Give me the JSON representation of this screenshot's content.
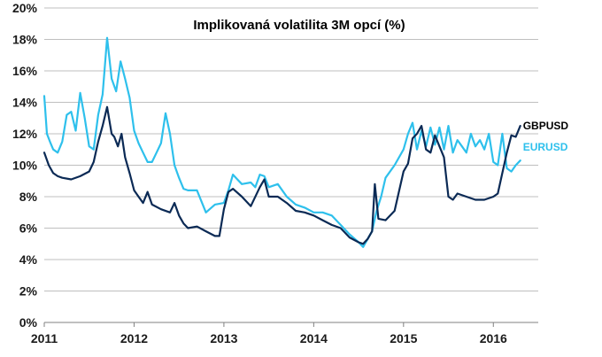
{
  "chart_data": {
    "type": "line",
    "title": "Implikovaná volatilita 3M opcí (%)",
    "xlabel": "",
    "ylabel": "",
    "ylim": [
      0,
      20
    ],
    "xlim": [
      2011.0,
      2016.5
    ],
    "y_ticks": [
      0,
      2,
      4,
      6,
      8,
      10,
      12,
      14,
      16,
      18,
      20
    ],
    "y_tick_labels": [
      "0%",
      "2%",
      "4%",
      "6%",
      "8%",
      "10%",
      "12%",
      "14%",
      "16%",
      "18%",
      "20%"
    ],
    "x_ticks": [
      2011,
      2012,
      2013,
      2014,
      2015,
      2016
    ],
    "x_tick_labels": [
      "2011",
      "2012",
      "2013",
      "2014",
      "2015",
      "2016"
    ],
    "grid": "horizontal",
    "series": [
      {
        "name": "GBPUSD",
        "color": "#0b2a55",
        "x": [
          2011.0,
          2011.05,
          2011.1,
          2011.15,
          2011.2,
          2011.3,
          2011.4,
          2011.5,
          2011.55,
          2011.6,
          2011.65,
          2011.7,
          2011.75,
          2011.78,
          2011.82,
          2011.86,
          2011.9,
          2011.95,
          2012.0,
          2012.05,
          2012.1,
          2012.15,
          2012.2,
          2012.3,
          2012.4,
          2012.45,
          2012.5,
          2012.55,
          2012.6,
          2012.7,
          2012.8,
          2012.9,
          2012.95,
          2013.0,
          2013.05,
          2013.1,
          2013.2,
          2013.3,
          2013.4,
          2013.45,
          2013.5,
          2013.6,
          2013.7,
          2013.8,
          2013.9,
          2014.0,
          2014.1,
          2014.2,
          2014.3,
          2014.4,
          2014.5,
          2014.55,
          2014.6,
          2014.65,
          2014.68,
          2014.72,
          2014.8,
          2014.9,
          2015.0,
          2015.05,
          2015.1,
          2015.15,
          2015.2,
          2015.25,
          2015.3,
          2015.35,
          2015.4,
          2015.45,
          2015.5,
          2015.55,
          2015.6,
          2015.7,
          2015.8,
          2015.9,
          2016.0,
          2016.05,
          2016.1,
          2016.15,
          2016.2,
          2016.25,
          2016.3
        ],
        "values": [
          10.8,
          10.0,
          9.5,
          9.3,
          9.2,
          9.1,
          9.3,
          9.6,
          10.2,
          11.5,
          12.5,
          13.7,
          12.0,
          11.8,
          11.2,
          12.0,
          10.5,
          9.5,
          8.4,
          8.0,
          7.6,
          8.3,
          7.5,
          7.2,
          7.0,
          7.6,
          6.8,
          6.3,
          6.0,
          6.1,
          5.8,
          5.5,
          5.5,
          7.2,
          8.3,
          8.5,
          8.0,
          7.4,
          8.6,
          9.1,
          8.0,
          8.0,
          7.6,
          7.1,
          7.0,
          6.8,
          6.5,
          6.2,
          6.0,
          5.4,
          5.1,
          5.0,
          5.3,
          5.8,
          8.8,
          6.6,
          6.5,
          7.1,
          9.6,
          10.1,
          11.7,
          12.0,
          12.5,
          11.0,
          10.8,
          11.9,
          11.2,
          10.5,
          8.0,
          7.8,
          8.2,
          8.0,
          7.8,
          7.8,
          8.0,
          8.2,
          9.5,
          10.8,
          11.9,
          11.8,
          12.5
        ]
      },
      {
        "name": "EURUSD",
        "color": "#2ec0ec",
        "x": [
          2011.0,
          2011.03,
          2011.07,
          2011.1,
          2011.15,
          2011.2,
          2011.25,
          2011.3,
          2011.35,
          2011.4,
          2011.45,
          2011.5,
          2011.55,
          2011.6,
          2011.65,
          2011.7,
          2011.75,
          2011.8,
          2011.85,
          2011.9,
          2011.95,
          2012.0,
          2012.05,
          2012.1,
          2012.15,
          2012.2,
          2012.25,
          2012.3,
          2012.35,
          2012.4,
          2012.45,
          2012.5,
          2012.55,
          2012.6,
          2012.7,
          2012.8,
          2012.9,
          2013.0,
          2013.05,
          2013.1,
          2013.15,
          2013.2,
          2013.3,
          2013.35,
          2013.4,
          2013.45,
          2013.5,
          2013.6,
          2013.7,
          2013.8,
          2013.9,
          2014.0,
          2014.1,
          2014.2,
          2014.3,
          2014.4,
          2014.5,
          2014.55,
          2014.6,
          2014.65,
          2014.7,
          2014.75,
          2014.8,
          2014.9,
          2015.0,
          2015.05,
          2015.1,
          2015.15,
          2015.2,
          2015.25,
          2015.3,
          2015.35,
          2015.4,
          2015.45,
          2015.5,
          2015.55,
          2015.6,
          2015.65,
          2015.7,
          2015.75,
          2015.8,
          2015.85,
          2015.9,
          2015.95,
          2016.0,
          2016.05,
          2016.1,
          2016.15,
          2016.2,
          2016.25,
          2016.3
        ],
        "values": [
          14.4,
          12.0,
          11.4,
          11.0,
          10.8,
          11.5,
          13.2,
          13.4,
          12.2,
          14.6,
          13.0,
          11.2,
          11.0,
          13.2,
          14.5,
          18.1,
          15.5,
          14.7,
          16.6,
          15.5,
          14.3,
          12.2,
          11.4,
          10.8,
          10.2,
          10.2,
          10.8,
          11.4,
          13.3,
          12.0,
          10.0,
          9.2,
          8.5,
          8.4,
          8.4,
          7.0,
          7.5,
          7.6,
          8.4,
          9.4,
          9.1,
          8.8,
          8.9,
          8.6,
          9.4,
          9.3,
          8.6,
          8.8,
          8.0,
          7.5,
          7.3,
          7.0,
          7.0,
          6.8,
          6.2,
          5.6,
          5.1,
          4.8,
          5.3,
          5.8,
          7.1,
          8.0,
          9.2,
          10.0,
          11.0,
          12.0,
          12.7,
          11.0,
          12.2,
          11.2,
          12.4,
          11.3,
          12.4,
          11.0,
          12.5,
          10.8,
          11.6,
          11.2,
          10.8,
          12.0,
          11.2,
          11.6,
          11.0,
          12.0,
          10.2,
          10.0,
          12.0,
          9.8,
          9.6,
          10.0,
          10.3
        ]
      }
    ],
    "annotations": [
      {
        "text": "GBPUSD",
        "series": "GBPUSD"
      },
      {
        "text": "EURUSD",
        "series": "EURUSD"
      }
    ]
  }
}
